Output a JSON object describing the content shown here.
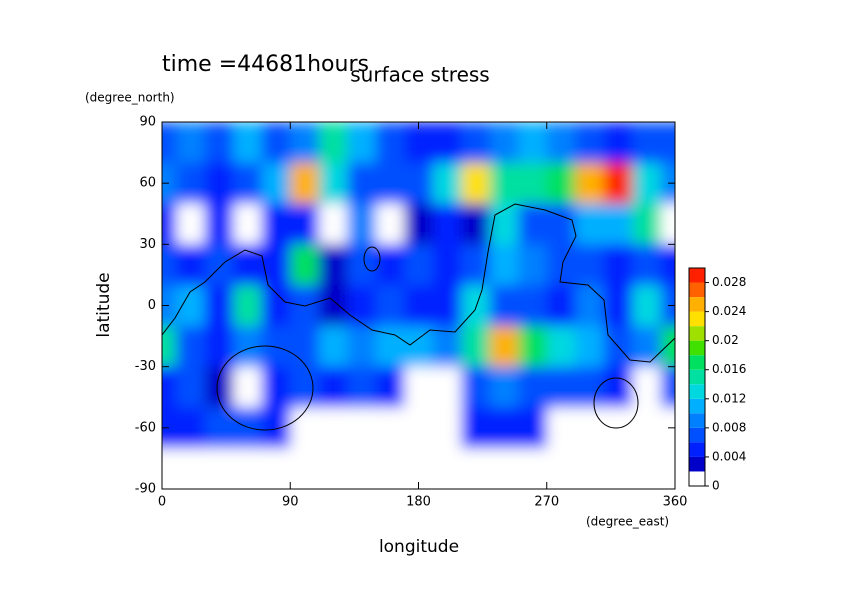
{
  "chart_data": {
    "type": "contour",
    "title": "surface stress",
    "subtitle": "time =44681hours",
    "xlabel": "longitude",
    "xunit": "(degree_east)",
    "ylabel": "latitude",
    "yunit": "(degree_north)",
    "x": [
      0,
      20,
      40,
      60,
      80,
      100,
      120,
      140,
      160,
      180,
      200,
      220,
      240,
      260,
      280,
      300,
      320,
      340,
      360
    ],
    "y": [
      80,
      60,
      40,
      20,
      0,
      -20,
      -40,
      -60,
      -80
    ],
    "z": [
      [
        0.006,
        0.008,
        0.006,
        0.01,
        0.006,
        0.008,
        0.014,
        0.01,
        0.006,
        0.004,
        0.004,
        0.006,
        0.008,
        0.01,
        0.008,
        0.006,
        0.004,
        0.006,
        0.006
      ],
      [
        0.008,
        0.006,
        0.004,
        0.006,
        0.01,
        0.024,
        0.012,
        0.006,
        0.006,
        0.006,
        0.012,
        0.022,
        0.014,
        0.014,
        0.016,
        0.024,
        0.03,
        0.012,
        0.008
      ],
      [
        0.004,
        0,
        0.004,
        0,
        0.004,
        0.004,
        0,
        0.008,
        0,
        0.002,
        0.004,
        0.002,
        0.012,
        0.006,
        0.006,
        0.01,
        0.01,
        0.014,
        0
      ],
      [
        0.006,
        0.004,
        0.006,
        0.004,
        0.004,
        0.016,
        0.002,
        0.006,
        0.004,
        0.006,
        0.004,
        0.006,
        0.01,
        0.008,
        0.006,
        0.006,
        0.004,
        0.006,
        0.004
      ],
      [
        0.008,
        0.01,
        0.004,
        0.014,
        0.004,
        0.006,
        0.002,
        0.004,
        0.006,
        0.004,
        0.004,
        0.012,
        0.006,
        0.006,
        0.004,
        0.008,
        0.004,
        0.012,
        0.006
      ],
      [
        0.014,
        0.006,
        0.004,
        0.008,
        0.006,
        0.006,
        0.01,
        0.008,
        0.01,
        0.01,
        0.008,
        0.014,
        0.024,
        0.016,
        0.012,
        0.01,
        0.006,
        0.008,
        0.016
      ],
      [
        0.004,
        0.006,
        0.002,
        0,
        0.004,
        0.006,
        0.004,
        0.006,
        0.004,
        0,
        0,
        0.006,
        0.008,
        0.006,
        0.006,
        0.006,
        0.004,
        0,
        0.006
      ],
      [
        0.004,
        0.004,
        0.006,
        0.006,
        0.004,
        0,
        0,
        0,
        0,
        0,
        0,
        0.004,
        0.004,
        0.004,
        0,
        0,
        0,
        0,
        0
      ],
      [
        0,
        0,
        0,
        0,
        0,
        0,
        0,
        0,
        0,
        0,
        0,
        0,
        0,
        0,
        0,
        0,
        0,
        0,
        0
      ]
    ],
    "levels": [
      0,
      0.002,
      0.004,
      0.006,
      0.008,
      0.01,
      0.012,
      0.014,
      0.016,
      0.018,
      0.02,
      0.022,
      0.024,
      0.026,
      0.028,
      0.03
    ],
    "colors": [
      "#ffffff",
      "#0000c8",
      "#0020ff",
      "#0050ff",
      "#0080ff",
      "#00b0ff",
      "#00d8e0",
      "#00e0a0",
      "#00e060",
      "#40e000",
      "#a0e000",
      "#ffe000",
      "#ffb000",
      "#ff6000",
      "#ff2000"
    ],
    "colorbar_ticks": [
      0,
      0.004,
      0.008,
      0.012,
      0.016,
      0.02,
      0.024,
      0.028
    ],
    "xlim": [
      0,
      360
    ],
    "ylim": [
      -90,
      90
    ],
    "xticks": [
      0,
      90,
      180,
      270,
      360
    ],
    "yticks": [
      -90,
      -60,
      -30,
      0,
      30,
      60,
      90
    ]
  }
}
